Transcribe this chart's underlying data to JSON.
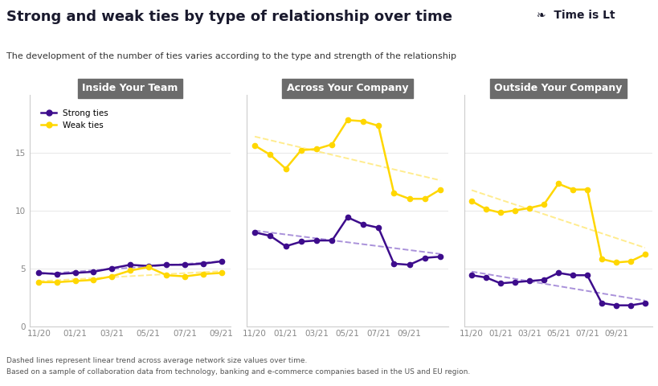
{
  "title": "Strong and weak ties by type of relationship over time",
  "subtitle": "The development of the number of ties varies according to the type and strength of the relationship",
  "logo_text": "❧  Time is Lt",
  "panel_titles": [
    "Inside Your Team",
    "Across Your Company",
    "Outside Your Company"
  ],
  "panel1": {
    "strong": [
      4.6,
      4.5,
      4.6,
      4.7,
      5.0,
      5.3,
      5.2,
      5.3,
      5.3,
      5.4,
      5.6
    ],
    "weak": [
      3.8,
      3.8,
      3.9,
      4.0,
      4.3,
      4.8,
      5.1,
      4.4,
      4.3,
      4.5,
      4.6
    ]
  },
  "panel2": {
    "strong": [
      8.1,
      7.8,
      6.9,
      7.3,
      7.4,
      7.4,
      9.4,
      8.8,
      8.5,
      5.4,
      5.3,
      5.9,
      6.0
    ],
    "weak": [
      15.6,
      14.8,
      13.6,
      15.2,
      15.3,
      15.7,
      17.8,
      17.7,
      17.3,
      11.5,
      11.0,
      11.0,
      11.8
    ]
  },
  "panel3": {
    "strong": [
      4.4,
      4.2,
      3.7,
      3.8,
      3.9,
      4.0,
      4.6,
      4.4,
      4.4,
      2.0,
      1.8,
      1.8,
      2.0
    ],
    "weak": [
      10.8,
      10.1,
      9.8,
      10.0,
      10.2,
      10.5,
      12.3,
      11.8,
      11.8,
      5.8,
      5.5,
      5.6,
      6.2
    ]
  },
  "strong_color": "#3D0C8C",
  "weak_color": "#FFD700",
  "trend_strong_color": "#9B7FD4",
  "trend_weak_color": "#FFE97A",
  "panel_title_bg": "#6B6B6B",
  "panel_title_color": "#FFFFFF",
  "background_color": "#FFFFFF",
  "ylim": [
    0,
    20
  ],
  "yticks": [
    0,
    5,
    10,
    15
  ],
  "footer1": "Dashed lines represent linear trend across average network size values over time.",
  "footer2": "Based on a sample of collaboration data from technology, banking and e-commerce companies based in the US and EU region.",
  "title_color": "#1a1a2e",
  "subtitle_color": "#333333",
  "tick_color": "#888888",
  "spine_color": "#cccccc"
}
